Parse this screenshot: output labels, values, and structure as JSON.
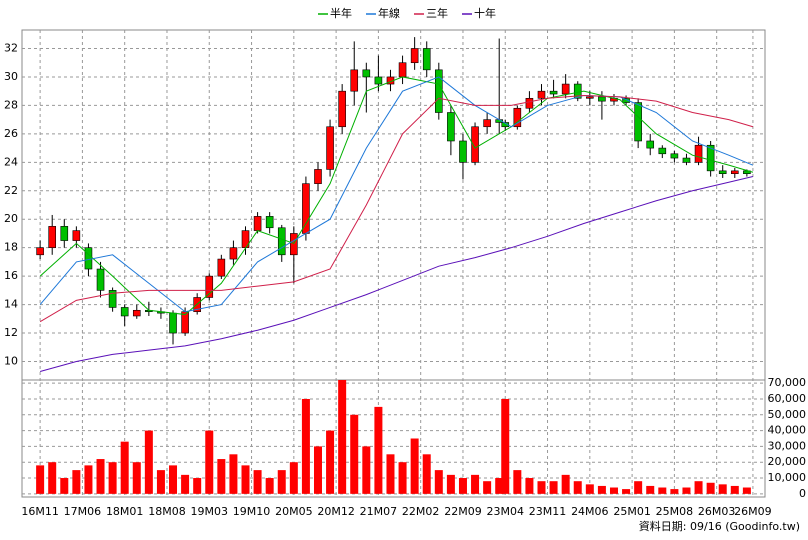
{
  "chart_data": {
    "type": "candlestick",
    "footer": "資料日期: 09/16  (Goodinfo.tw)",
    "grid": true,
    "up_color": "#ff0000",
    "down_color": "#00c000",
    "xlim": [
      -3,
      120
    ],
    "xticks": [
      {
        "value": 0,
        "label": "16M11"
      },
      {
        "value": 7,
        "label": "17M06"
      },
      {
        "value": 14,
        "label": "18M01"
      },
      {
        "value": 21,
        "label": "18M08"
      },
      {
        "value": 28,
        "label": "19M03"
      },
      {
        "value": 35,
        "label": "19M10"
      },
      {
        "value": 42,
        "label": "20M05"
      },
      {
        "value": 49,
        "label": "20M12"
      },
      {
        "value": 56,
        "label": "21M07"
      },
      {
        "value": 63,
        "label": "22M02"
      },
      {
        "value": 70,
        "label": "22M09"
      },
      {
        "value": 77,
        "label": "23M04"
      },
      {
        "value": 84,
        "label": "23M11"
      },
      {
        "value": 91,
        "label": "24M06"
      },
      {
        "value": 98,
        "label": "25M01"
      },
      {
        "value": 105,
        "label": "25M08"
      },
      {
        "value": 112,
        "label": "26M03"
      },
      {
        "value": 118,
        "label": "26M09"
      }
    ],
    "ylim": [
      8.7,
      33.3
    ],
    "yticks": [
      10,
      12,
      14,
      16,
      18,
      20,
      22,
      24,
      26,
      28,
      30,
      32
    ],
    "y2lim": [
      -2000,
      72000
    ],
    "y2ticks": [
      {
        "value": 0,
        "label": "0"
      },
      {
        "value": 10000,
        "label": "10,000"
      },
      {
        "value": 20000,
        "label": "20,000"
      },
      {
        "value": 30000,
        "label": "30,000"
      },
      {
        "value": 40000,
        "label": "40,000"
      },
      {
        "value": 50000,
        "label": "50,000"
      },
      {
        "value": 60000,
        "label": "60,000"
      },
      {
        "value": 70000,
        "label": "70,000"
      }
    ],
    "candles": {
      "x": [
        0,
        2,
        4,
        6,
        8,
        10,
        12,
        14,
        16,
        18,
        20,
        22,
        24,
        26,
        28,
        30,
        32,
        34,
        36,
        38,
        40,
        42,
        44,
        46,
        48,
        50,
        52,
        54,
        56,
        58,
        60,
        62,
        64,
        66,
        68,
        70,
        72,
        74,
        76,
        77,
        79,
        81,
        83,
        85,
        87,
        89,
        91,
        93,
        95,
        97,
        99,
        101,
        103,
        105,
        107,
        109,
        111,
        113,
        115,
        117
      ],
      "open": [
        17.5,
        18.0,
        19.5,
        18.5,
        18.0,
        16.5,
        15.0,
        13.8,
        13.2,
        13.6,
        13.5,
        13.4,
        12.0,
        13.5,
        14.5,
        16.0,
        17.2,
        18.0,
        19.2,
        20.2,
        19.4,
        17.5,
        19.0,
        22.5,
        23.5,
        26.5,
        29.0,
        30.5,
        30.0,
        29.5,
        30.0,
        31.0,
        32.0,
        30.5,
        27.5,
        25.5,
        24.0,
        26.5,
        27.0,
        26.8,
        26.5,
        27.8,
        28.5,
        29.0,
        28.8,
        29.5,
        28.5,
        28.6,
        28.3,
        28.5,
        28.2,
        25.5,
        25.0,
        24.6,
        24.3,
        24.0,
        25.2,
        23.4,
        23.2,
        23.4
      ],
      "high": [
        18.5,
        20.3,
        20.0,
        19.5,
        18.3,
        17.0,
        15.2,
        14.0,
        14.0,
        14.2,
        13.8,
        13.6,
        13.8,
        14.8,
        16.2,
        17.5,
        18.5,
        19.5,
        20.5,
        20.5,
        19.6,
        19.5,
        23.0,
        24.0,
        27.0,
        29.5,
        32.5,
        31.0,
        31.5,
        30.5,
        31.5,
        32.8,
        32.5,
        31.0,
        28.0,
        26.0,
        26.8,
        27.5,
        32.7,
        27.0,
        28.0,
        29.0,
        29.5,
        29.8,
        30.2,
        29.7,
        29.0,
        29.0,
        28.8,
        28.7,
        28.5,
        26.0,
        25.2,
        24.8,
        24.6,
        25.8,
        25.5,
        23.8,
        23.6,
        23.5
      ],
      "low": [
        17.2,
        17.5,
        18.0,
        18.0,
        16.0,
        14.5,
        13.5,
        12.5,
        13.0,
        13.2,
        13.0,
        11.2,
        11.8,
        13.3,
        14.3,
        15.8,
        16.8,
        17.5,
        19.0,
        19.0,
        17.0,
        15.5,
        18.5,
        22.0,
        23.0,
        26.0,
        28.0,
        27.5,
        29.0,
        29.0,
        29.5,
        30.5,
        30.0,
        27.0,
        24.5,
        22.8,
        23.8,
        26.0,
        26.0,
        26.2,
        26.3,
        27.5,
        28.0,
        28.5,
        28.5,
        28.3,
        28.0,
        27.0,
        28.0,
        28.0,
        25.0,
        24.5,
        24.3,
        24.0,
        23.8,
        23.8,
        23.0,
        22.9,
        22.9,
        23.0
      ],
      "close": [
        18.0,
        19.5,
        18.5,
        19.2,
        16.5,
        15.0,
        13.8,
        13.2,
        13.6,
        13.5,
        13.4,
        12.0,
        13.5,
        14.5,
        16.0,
        17.2,
        18.0,
        19.2,
        20.2,
        19.4,
        17.5,
        19.0,
        22.5,
        23.5,
        26.5,
        29.0,
        30.5,
        30.0,
        29.5,
        30.0,
        31.0,
        32.0,
        30.5,
        27.5,
        25.5,
        24.0,
        26.5,
        27.0,
        26.8,
        26.5,
        27.8,
        28.5,
        29.0,
        28.8,
        29.5,
        28.5,
        28.6,
        28.3,
        28.5,
        28.2,
        25.5,
        25.0,
        24.6,
        24.3,
        24.0,
        25.2,
        23.4,
        23.2,
        23.4,
        23.2
      ],
      "volume": [
        18000,
        20000,
        10000,
        15000,
        18000,
        22000,
        20000,
        33000,
        20000,
        40000,
        15000,
        18000,
        12000,
        10000,
        40000,
        22000,
        25000,
        18000,
        15000,
        10000,
        15000,
        20000,
        60000,
        30000,
        40000,
        72000,
        50000,
        30000,
        55000,
        25000,
        20000,
        35000,
        25000,
        15000,
        12000,
        10000,
        12000,
        8000,
        10000,
        60000,
        15000,
        10000,
        8000,
        8000,
        12000,
        8000,
        6000,
        5000,
        4000,
        3000,
        8000,
        5000,
        4000,
        3000,
        4000,
        8000,
        7000,
        6000,
        5000,
        4000
      ],
      "volume_color": "#ff0000"
    },
    "line_x": [
      0,
      6,
      12,
      18,
      24,
      30,
      36,
      42,
      48,
      54,
      60,
      66,
      72,
      78,
      84,
      90,
      96,
      102,
      108,
      114,
      118
    ],
    "series": [
      {
        "name": "半年",
        "color": "#00b000",
        "values": [
          16,
          18.3,
          16,
          13.6,
          13.3,
          15.5,
          19.2,
          18.3,
          22.5,
          29,
          30,
          29.5,
          25,
          26.5,
          28.5,
          29,
          28.4,
          26,
          24.5,
          23.8,
          23.3
        ]
      },
      {
        "name": "年線",
        "color": "#1e78d8",
        "values": [
          14,
          17,
          17.5,
          15.5,
          13.5,
          14,
          17,
          18.5,
          20,
          25,
          29,
          30,
          28,
          26.5,
          28,
          28.7,
          28.6,
          27.5,
          25.5,
          24.5,
          23.8
        ]
      },
      {
        "name": "三年",
        "color": "#d0204a",
        "values": [
          12.8,
          14.3,
          14.8,
          15,
          15,
          15,
          15.3,
          15.6,
          16.5,
          21,
          26,
          28.5,
          28,
          28,
          28.5,
          28.7,
          28.6,
          28.3,
          27.5,
          27,
          26.5
        ]
      },
      {
        "name": "十年",
        "color": "#5a10b8",
        "values": [
          9.3,
          10,
          10.5,
          10.8,
          11.1,
          11.6,
          12.2,
          12.9,
          13.8,
          14.7,
          15.7,
          16.7,
          17.3,
          18,
          18.8,
          19.7,
          20.5,
          21.3,
          22,
          22.6,
          23
        ]
      }
    ]
  }
}
